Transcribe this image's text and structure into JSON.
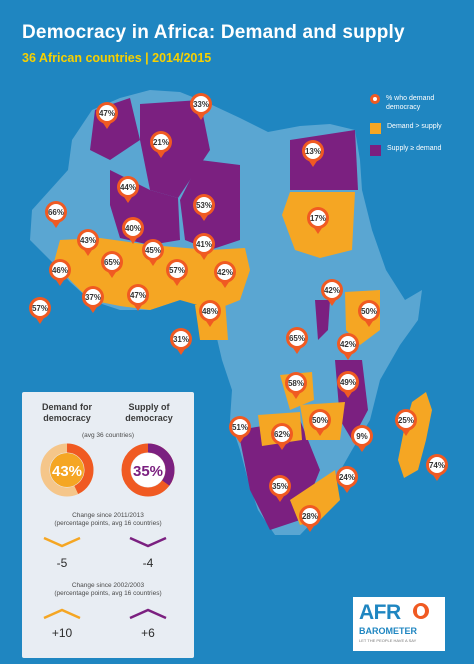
{
  "header": {
    "title": "Democracy in Africa: Demand and supply",
    "subtitle": "36 African countries | 2014/2015"
  },
  "legend": {
    "pin_label": "% who demand democracy",
    "demand_label": "Demand > supply",
    "supply_label": "Supply ≥ demand"
  },
  "colors": {
    "background": "#1f86c1",
    "ocean_land_other": "#5aa6d2",
    "demand_gt_supply": "#f5a623",
    "supply_ge_demand": "#7b2080",
    "pin_ring": "#f05a22"
  },
  "countries": [
    {
      "category": "supply_ge_demand",
      "demand_pct": "47%"
    },
    {
      "category": "supply_ge_demand",
      "demand_pct": "33%"
    },
    {
      "category": "supply_ge_demand",
      "demand_pct": "21%"
    },
    {
      "category": "supply_ge_demand",
      "demand_pct": "13%"
    },
    {
      "category": "supply_ge_demand",
      "demand_pct": "44%"
    },
    {
      "category": "supply_ge_demand",
      "demand_pct": "53%"
    },
    {
      "category": "demand_gt_supply",
      "demand_pct": "17%"
    },
    {
      "category": "demand_gt_supply",
      "demand_pct": "66%"
    },
    {
      "category": "supply_ge_demand",
      "demand_pct": "40%"
    },
    {
      "category": "demand_gt_supply",
      "demand_pct": "43%"
    },
    {
      "category": "demand_gt_supply",
      "demand_pct": "45%"
    },
    {
      "category": "demand_gt_supply",
      "demand_pct": "41%"
    },
    {
      "category": "demand_gt_supply",
      "demand_pct": "46%"
    },
    {
      "category": "demand_gt_supply",
      "demand_pct": "65%"
    },
    {
      "category": "demand_gt_supply",
      "demand_pct": "57%"
    },
    {
      "category": "demand_gt_supply",
      "demand_pct": "42%"
    },
    {
      "category": "demand_gt_supply",
      "demand_pct": "57%"
    },
    {
      "category": "demand_gt_supply",
      "demand_pct": "37%"
    },
    {
      "category": "demand_gt_supply",
      "demand_pct": "47%"
    },
    {
      "category": "demand_gt_supply",
      "demand_pct": "48%"
    },
    {
      "category": "demand_gt_supply",
      "demand_pct": "31%"
    },
    {
      "category": "supply_ge_demand",
      "demand_pct": "42%"
    },
    {
      "category": "demand_gt_supply",
      "demand_pct": "50%"
    },
    {
      "category": "supply_ge_demand",
      "demand_pct": "65%"
    },
    {
      "category": "supply_ge_demand",
      "demand_pct": "42%"
    },
    {
      "category": "demand_gt_supply",
      "demand_pct": "58%"
    },
    {
      "category": "supply_ge_demand",
      "demand_pct": "49%"
    },
    {
      "category": "demand_gt_supply",
      "demand_pct": "50%"
    },
    {
      "category": "demand_gt_supply",
      "demand_pct": "25%"
    },
    {
      "category": "supply_ge_demand",
      "demand_pct": "51%"
    },
    {
      "category": "demand_gt_supply",
      "demand_pct": "62%"
    },
    {
      "category": "supply_ge_demand",
      "demand_pct": "9%"
    },
    {
      "category": "supply_ge_demand",
      "demand_pct": "74%"
    },
    {
      "category": "supply_ge_demand",
      "demand_pct": "35%"
    },
    {
      "category": "demand_gt_supply",
      "demand_pct": "24%"
    },
    {
      "category": "demand_gt_supply",
      "demand_pct": "28%"
    }
  ],
  "panel": {
    "demand_header": "Demand for democracy",
    "supply_header": "Supply of democracy",
    "avg_note": "(avg 36 countries)",
    "demand_avg": "43%",
    "supply_avg": "35%",
    "demand_avg_value": 43,
    "supply_avg_value": 35,
    "change1_note": "Change since 2011/2013",
    "change1_sub": "(percentage points, avg 16 countries)",
    "change1_demand": "-5",
    "change1_supply": "-4",
    "change2_note": "Change since 2002/2003",
    "change2_sub": "(percentage points, avg 16 countries)",
    "change2_demand": "+10",
    "change2_supply": "+6"
  },
  "logo": {
    "brand": "AFR",
    "sub": "BAROMETER",
    "tagline": "LET THE PEOPLE HAVE A SAY"
  }
}
